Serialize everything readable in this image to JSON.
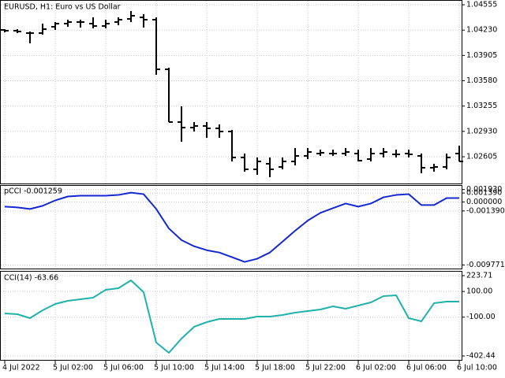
{
  "chart_data": [
    {
      "type": "ohlc",
      "title": "EURUSD, H1:  Euro vs US Dollar",
      "color": "#000000",
      "grid": true,
      "categories": [
        "4 Jul 2022",
        null,
        null,
        null,
        "5 Jul 02:00",
        null,
        null,
        null,
        "5 Jul 06:00",
        null,
        null,
        null,
        "5 Jul 10:00",
        null,
        null,
        null,
        "5 Jul 14:00",
        null,
        null,
        null,
        "5 Jul 18:00",
        null,
        null,
        null,
        "5 Jul 22:00",
        null,
        null,
        null,
        "6 Jul 02:00",
        null,
        null,
        null,
        "6 Jul 06:00",
        null,
        null,
        null,
        "6 Jul 10:00"
      ],
      "open": [
        1.04232,
        1.04222,
        1.04191,
        1.04191,
        1.04272,
        1.04313,
        1.04333,
        1.04313,
        1.04282,
        1.04333,
        1.04373,
        1.04393,
        1.04363,
        1.03727,
        1.0305,
        1.02979,
        1.03,
        1.02969,
        1.02929,
        1.02596,
        1.02444,
        1.02515,
        1.02474,
        1.02545,
        1.02616,
        1.02646,
        1.02646,
        1.02646,
        1.02646,
        1.02575,
        1.02646,
        1.02636,
        1.02646,
        1.02616,
        1.02464,
        1.02474,
        1.02646
      ],
      "high": [
        1.04242,
        1.04242,
        1.04212,
        1.04313,
        1.04333,
        1.04363,
        1.04363,
        1.04393,
        1.04363,
        1.04393,
        1.04474,
        1.04434,
        1.04393,
        1.03747,
        1.03252,
        1.0305,
        1.0305,
        1.0302,
        1.02949,
        1.02646,
        1.02596,
        1.02596,
        1.02596,
        1.02717,
        1.02717,
        1.02697,
        1.02697,
        1.02717,
        1.02697,
        1.02717,
        1.02717,
        1.02697,
        1.02697,
        1.02646,
        1.02515,
        1.02646,
        1.02747
      ],
      "low": [
        1.04201,
        1.04191,
        1.0406,
        1.04171,
        1.04232,
        1.04272,
        1.04262,
        1.04252,
        1.04252,
        1.04292,
        1.04333,
        1.04262,
        1.03656,
        1.0305,
        1.02798,
        1.02929,
        1.02848,
        1.02848,
        1.02545,
        1.02414,
        1.02373,
        1.02343,
        1.02444,
        1.02495,
        1.02575,
        1.02616,
        1.02616,
        1.02616,
        1.02545,
        1.02545,
        1.02596,
        1.02596,
        1.02596,
        1.02394,
        1.02414,
        1.02444,
        1.02545
      ],
      "close": [
        1.04222,
        1.04212,
        1.04191,
        1.04242,
        1.04313,
        1.04333,
        1.04333,
        1.04282,
        1.04313,
        1.04363,
        1.04414,
        1.04363,
        1.03727,
        1.0305,
        1.02979,
        1.03,
        1.02969,
        1.02929,
        1.02596,
        1.02444,
        1.02545,
        1.02444,
        1.02545,
        1.02616,
        1.02666,
        1.02656,
        1.02646,
        1.02666,
        1.02555,
        1.02646,
        1.02666,
        1.02636,
        1.02636,
        1.02464,
        1.02474,
        1.02596,
        1.02545
      ],
      "ylim": [
        1.02272,
        1.04616
      ],
      "yticks": [
        1.04555,
        {
          "value": 1.0423,
          "label": "1.04230"
        },
        1.03905,
        {
          "value": 1.0358,
          "label": "1.03580"
        },
        1.03255,
        {
          "value": 1.0293,
          "label": "1.02930"
        },
        1.02605
      ]
    },
    {
      "type": "line",
      "title": "pCCI -0.001259",
      "color": "#1428d2",
      "grid": true,
      "values": [
        -0.00072,
        -0.00084,
        -0.00109,
        -0.0006,
        0.00024,
        0.00085,
        0.00097,
        0.00097,
        0.00097,
        0.00109,
        0.00145,
        0.00121,
        -0.00109,
        -0.0041,
        -0.00591,
        -0.00687,
        -0.00748,
        -0.00784,
        -0.00856,
        -0.00929,
        -0.0088,
        -0.00784,
        -0.00615,
        -0.00446,
        -0.00289,
        -0.00169,
        -0.00096,
        -0.00024,
        -0.00072,
        -0.00024,
        0.00072,
        0.00109,
        0.00121,
        -0.00048,
        -0.00048,
        0.0006,
        0.0006
      ],
      "ylim": [
        -0.0102,
        0.0025
      ],
      "yticks": [
        {
          "value": 0.00193,
          "label": "0.001930"
        },
        {
          "value": 0.00139,
          "label": "0.001390"
        },
        {
          "value": 0,
          "label": "0.000000"
        },
        {
          "value": -0.00139,
          "label": "-0.001390"
        },
        {
          "value": -0.009771,
          "label": "-0.009771"
        }
      ]
    },
    {
      "type": "line",
      "title": "CCI(14) -63.66",
      "color": "#20b2aa",
      "grid": true,
      "values": [
        -71.0,
        -77.1,
        -107.8,
        -46.4,
        2.7,
        27.3,
        39.5,
        51.8,
        113.2,
        125.5,
        186.9,
        94.8,
        -298.1,
        -377.9,
        -267.4,
        -175.3,
        -138.5,
        -113.9,
        -113.9,
        -113.9,
        -95.5,
        -95.5,
        -83.2,
        -64.8,
        -52.6,
        -40.3,
        -15.7,
        -34.1,
        -9.6,
        15.0,
        64.1,
        70.2,
        -107.8,
        -132.4,
        8.8,
        21.1,
        21.1
      ],
      "ylim": [
        -402.44,
        223.71
      ],
      "yticks": [
        223.71,
        {
          "value": 100,
          "label": "100.00"
        },
        {
          "value": -100,
          "label": "-100.00"
        },
        -402.44
      ]
    }
  ]
}
